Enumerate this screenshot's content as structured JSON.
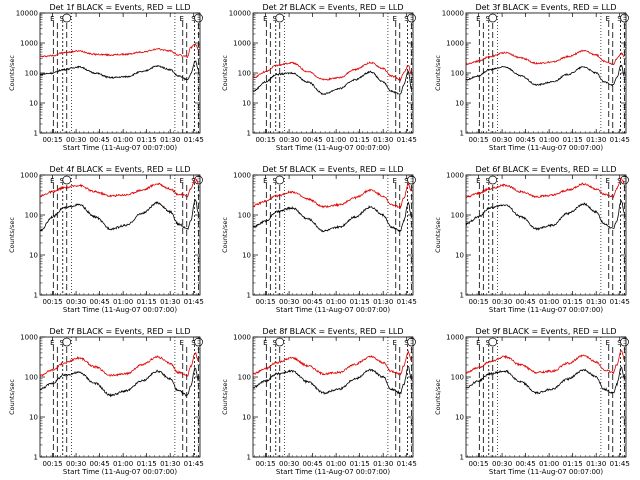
{
  "chart_data": [
    {
      "type": "line",
      "title": "Det 1f BLACK = Events, RED = LLD",
      "xlabel": "Start Time (11-Aug-07 00:07:00)",
      "ylabel": "Counts/sec",
      "yscale": "log",
      "ylim": [
        1,
        10000
      ],
      "x_ticks": [
        "00:15",
        "00:30",
        "00:45",
        "01:00",
        "01:15",
        "01:30",
        "01:45"
      ],
      "y_ticks": [
        "1",
        "10",
        "100",
        "1000",
        "10000"
      ],
      "markers": [
        {
          "label": "E",
          "x_min": 8.5
        },
        {
          "label": "S",
          "x_min": 14.5
        },
        {
          "label": "E",
          "x_min": 91
        },
        {
          "label": "S",
          "x_min": 98.5
        }
      ],
      "series": [
        {
          "color": "#e00000",
          "x": [
            0,
            8,
            15,
            25,
            35,
            45,
            55,
            65,
            75,
            83,
            88,
            94,
            96,
            99,
            101
          ],
          "values": [
            350,
            380,
            480,
            540,
            420,
            400,
            420,
            500,
            620,
            550,
            400,
            350,
            700,
            900,
            600
          ]
        },
        {
          "color": "#000000",
          "x": [
            0,
            8,
            15,
            25,
            35,
            45,
            55,
            65,
            75,
            83,
            88,
            94,
            96,
            99,
            101
          ],
          "values": [
            90,
            100,
            130,
            160,
            100,
            70,
            75,
            110,
            170,
            130,
            80,
            60,
            90,
            250,
            130
          ]
        }
      ]
    },
    {
      "type": "line",
      "title": "Det 2f BLACK = Events, RED = LLD",
      "xlabel": "Start Time (11-Aug-07 00:07:00)",
      "ylabel": "Counts/sec",
      "yscale": "log",
      "ylim": [
        1,
        10000
      ],
      "x_ticks": [
        "00:15",
        "00:30",
        "00:45",
        "01:00",
        "01:15",
        "01:30",
        "01:45"
      ],
      "y_ticks": [
        "1",
        "10",
        "100",
        "1000",
        "10000"
      ],
      "markers": [
        {
          "label": "E",
          "x_min": 8.5
        },
        {
          "label": "S",
          "x_min": 14.5
        },
        {
          "label": "E",
          "x_min": 91
        },
        {
          "label": "S",
          "x_min": 98.5
        }
      ],
      "series": [
        {
          "color": "#e00000",
          "x": [
            0,
            8,
            15,
            25,
            35,
            45,
            55,
            65,
            75,
            83,
            88,
            94,
            96,
            99,
            101
          ],
          "values": [
            70,
            110,
            180,
            220,
            110,
            60,
            70,
            130,
            220,
            140,
            80,
            60,
            100,
            180,
            90
          ]
        },
        {
          "color": "#000000",
          "x": [
            0,
            8,
            15,
            25,
            35,
            45,
            55,
            65,
            75,
            83,
            88,
            94,
            96,
            99,
            101
          ],
          "values": [
            25,
            50,
            90,
            100,
            50,
            20,
            30,
            60,
            110,
            50,
            25,
            20,
            40,
            110,
            30
          ]
        }
      ]
    },
    {
      "type": "line",
      "title": "Det 3f BLACK = Events, RED = LLD",
      "xlabel": "Start Time (11-Aug-07 00:07:00)",
      "ylabel": "Counts/sec",
      "yscale": "log",
      "ylim": [
        1,
        10000
      ],
      "x_ticks": [
        "00:15",
        "00:30",
        "00:45",
        "01:00",
        "01:15",
        "01:30",
        "01:45"
      ],
      "y_ticks": [
        "1",
        "10",
        "100",
        "1000",
        "10000"
      ],
      "markers": [
        {
          "label": "E",
          "x_min": 8.5
        },
        {
          "label": "S",
          "x_min": 14.5
        },
        {
          "label": "E",
          "x_min": 91
        },
        {
          "label": "S",
          "x_min": 98.5
        }
      ],
      "series": [
        {
          "color": "#e00000",
          "x": [
            0,
            8,
            15,
            25,
            35,
            45,
            55,
            65,
            75,
            83,
            88,
            94,
            96,
            99,
            101
          ],
          "values": [
            200,
            250,
            350,
            480,
            320,
            210,
            230,
            350,
            550,
            400,
            250,
            200,
            300,
            450,
            350
          ]
        },
        {
          "color": "#000000",
          "x": [
            0,
            8,
            15,
            25,
            35,
            45,
            55,
            65,
            75,
            83,
            88,
            94,
            96,
            99,
            101
          ],
          "values": [
            60,
            80,
            130,
            160,
            80,
            40,
            50,
            90,
            160,
            100,
            50,
            40,
            70,
            180,
            80
          ]
        }
      ]
    },
    {
      "type": "line",
      "title": "Det 4f BLACK = Events, RED = LLD",
      "xlabel": "Start Time (11-Aug-07 00:07:00)",
      "ylabel": "Counts/sec",
      "yscale": "log",
      "ylim": [
        1,
        1000
      ],
      "x_ticks": [
        "00:15",
        "00:30",
        "00:45",
        "01:00",
        "01:15",
        "01:30",
        "01:45"
      ],
      "y_ticks": [
        "1",
        "10",
        "100",
        "1000"
      ],
      "markers": [
        {
          "label": "E",
          "x_min": 8.5
        },
        {
          "label": "S",
          "x_min": 14.5
        },
        {
          "label": "E",
          "x_min": 91
        },
        {
          "label": "S",
          "x_min": 98.5
        }
      ],
      "series": [
        {
          "color": "#e00000",
          "x": [
            0,
            8,
            15,
            25,
            35,
            45,
            55,
            65,
            75,
            83,
            88,
            94,
            96,
            99,
            101
          ],
          "values": [
            300,
            380,
            480,
            550,
            380,
            300,
            320,
            420,
            600,
            450,
            330,
            300,
            450,
            800,
            650
          ]
        },
        {
          "color": "#000000",
          "x": [
            0,
            8,
            15,
            25,
            35,
            45,
            55,
            65,
            75,
            83,
            88,
            94,
            96,
            99,
            101
          ],
          "values": [
            40,
            90,
            150,
            180,
            90,
            45,
            55,
            110,
            200,
            120,
            60,
            45,
            70,
            250,
            110
          ]
        }
      ]
    },
    {
      "type": "line",
      "title": "Det 5f BLACK = Events, RED = LLD",
      "xlabel": "Start Time (11-Aug-07 00:07:00)",
      "ylabel": "Counts/sec",
      "yscale": "log",
      "ylim": [
        1,
        1000
      ],
      "x_ticks": [
        "00:15",
        "00:30",
        "00:45",
        "01:00",
        "01:15",
        "01:30",
        "01:45"
      ],
      "y_ticks": [
        "1",
        "10",
        "100",
        "1000"
      ],
      "markers": [
        {
          "label": "E",
          "x_min": 8.5
        },
        {
          "label": "S",
          "x_min": 14.5
        },
        {
          "label": "E",
          "x_min": 91
        },
        {
          "label": "S",
          "x_min": 98.5
        }
      ],
      "series": [
        {
          "color": "#e00000",
          "x": [
            0,
            8,
            15,
            25,
            35,
            45,
            55,
            65,
            75,
            83,
            88,
            94,
            96,
            99,
            101
          ],
          "values": [
            170,
            220,
            300,
            380,
            250,
            160,
            180,
            270,
            420,
            300,
            180,
            160,
            260,
            600,
            400
          ]
        },
        {
          "color": "#000000",
          "x": [
            0,
            8,
            15,
            25,
            35,
            45,
            55,
            65,
            75,
            83,
            88,
            94,
            96,
            99,
            101
          ],
          "values": [
            50,
            70,
            120,
            150,
            80,
            40,
            50,
            90,
            160,
            100,
            50,
            40,
            70,
            200,
            90
          ]
        }
      ]
    },
    {
      "type": "line",
      "title": "Det 6f BLACK = Events, RED = LLD",
      "xlabel": "Start Time (11-Aug-07 00:07:00)",
      "ylabel": "Counts/sec",
      "yscale": "log",
      "ylim": [
        1,
        1000
      ],
      "x_ticks": [
        "00:15",
        "00:30",
        "00:45",
        "01:00",
        "01:15",
        "01:30",
        "01:45"
      ],
      "y_ticks": [
        "1",
        "10",
        "100",
        "1000"
      ],
      "markers": [
        {
          "label": "E",
          "x_min": 8.5
        },
        {
          "label": "S",
          "x_min": 14.5
        },
        {
          "label": "E",
          "x_min": 91
        },
        {
          "label": "S",
          "x_min": 98.5
        }
      ],
      "series": [
        {
          "color": "#e00000",
          "x": [
            0,
            8,
            15,
            25,
            35,
            45,
            55,
            65,
            75,
            83,
            88,
            94,
            96,
            99,
            101
          ],
          "values": [
            280,
            350,
            450,
            560,
            380,
            290,
            310,
            420,
            600,
            450,
            330,
            290,
            450,
            800,
            650
          ]
        },
        {
          "color": "#000000",
          "x": [
            0,
            8,
            15,
            25,
            35,
            45,
            55,
            65,
            75,
            83,
            88,
            94,
            96,
            99,
            101
          ],
          "values": [
            60,
            90,
            150,
            180,
            90,
            45,
            55,
            110,
            190,
            120,
            60,
            45,
            70,
            230,
            110
          ]
        }
      ]
    },
    {
      "type": "line",
      "title": "Det 7f BLACK = Events, RED = LLD",
      "xlabel": "Start Time (11-Aug-07 00:07:00)",
      "ylabel": "Counts/sec",
      "yscale": "log",
      "ylim": [
        1,
        1000
      ],
      "x_ticks": [
        "00:15",
        "00:30",
        "00:45",
        "01:00",
        "01:15",
        "01:30",
        "01:45"
      ],
      "y_ticks": [
        "1",
        "10",
        "100",
        "1000"
      ],
      "markers": [
        {
          "label": "E",
          "x_min": 8.5
        },
        {
          "label": "S",
          "x_min": 14.5
        },
        {
          "label": "E",
          "x_min": 91
        },
        {
          "label": "S",
          "x_min": 98.5
        }
      ],
      "series": [
        {
          "color": "#e00000",
          "x": [
            0,
            8,
            15,
            25,
            35,
            45,
            55,
            65,
            75,
            83,
            88,
            94,
            96,
            99,
            101
          ],
          "values": [
            110,
            150,
            220,
            300,
            180,
            110,
            120,
            200,
            320,
            220,
            130,
            110,
            180,
            400,
            250
          ]
        },
        {
          "color": "#000000",
          "x": [
            0,
            8,
            15,
            25,
            35,
            45,
            55,
            65,
            75,
            83,
            88,
            94,
            96,
            99,
            101
          ],
          "values": [
            50,
            70,
            110,
            130,
            70,
            35,
            45,
            80,
            140,
            90,
            45,
            35,
            60,
            170,
            80
          ]
        }
      ]
    },
    {
      "type": "line",
      "title": "Det 8f BLACK = Events, RED = LLD",
      "xlabel": "Start Time (11-Aug-07 00:07:00)",
      "ylabel": "Counts/sec",
      "yscale": "log",
      "ylim": [
        1,
        1000
      ],
      "x_ticks": [
        "00:15",
        "00:30",
        "00:45",
        "01:00",
        "01:15",
        "01:30",
        "01:45"
      ],
      "y_ticks": [
        "1",
        "10",
        "100",
        "1000"
      ],
      "markers": [
        {
          "label": "E",
          "x_min": 8.5
        },
        {
          "label": "S",
          "x_min": 14.5
        },
        {
          "label": "E",
          "x_min": 91
        },
        {
          "label": "S",
          "x_min": 98.5
        }
      ],
      "series": [
        {
          "color": "#e00000",
          "x": [
            0,
            8,
            15,
            25,
            35,
            45,
            55,
            65,
            75,
            83,
            88,
            94,
            96,
            99,
            101
          ],
          "values": [
            120,
            160,
            230,
            300,
            190,
            120,
            130,
            210,
            320,
            230,
            140,
            120,
            190,
            420,
            260
          ]
        },
        {
          "color": "#000000",
          "x": [
            0,
            8,
            15,
            25,
            35,
            45,
            55,
            65,
            75,
            83,
            88,
            94,
            96,
            99,
            101
          ],
          "values": [
            55,
            80,
            120,
            140,
            75,
            40,
            50,
            90,
            150,
            100,
            50,
            40,
            65,
            180,
            90
          ]
        }
      ]
    },
    {
      "type": "line",
      "title": "Det 9f BLACK = Events, RED = LLD",
      "xlabel": "Start Time (11-Aug-07 00:07:00)",
      "ylabel": "Counts/sec",
      "yscale": "log",
      "ylim": [
        1,
        1000
      ],
      "x_ticks": [
        "00:15",
        "00:30",
        "00:45",
        "01:00",
        "01:15",
        "01:30",
        "01:45"
      ],
      "y_ticks": [
        "1",
        "10",
        "100",
        "1000"
      ],
      "markers": [
        {
          "label": "E",
          "x_min": 8.5
        },
        {
          "label": "S",
          "x_min": 14.5
        },
        {
          "label": "E",
          "x_min": 91
        },
        {
          "label": "S",
          "x_min": 98.5
        }
      ],
      "series": [
        {
          "color": "#e00000",
          "x": [
            0,
            8,
            15,
            25,
            35,
            45,
            55,
            65,
            75,
            83,
            88,
            94,
            96,
            99,
            101
          ],
          "values": [
            130,
            170,
            240,
            320,
            200,
            130,
            140,
            220,
            340,
            240,
            150,
            130,
            200,
            450,
            280
          ]
        },
        {
          "color": "#000000",
          "x": [
            0,
            8,
            15,
            25,
            35,
            45,
            55,
            65,
            75,
            83,
            88,
            94,
            96,
            99,
            101
          ],
          "values": [
            55,
            80,
            120,
            140,
            75,
            40,
            50,
            90,
            150,
            100,
            50,
            40,
            65,
            180,
            90
          ]
        }
      ]
    }
  ]
}
